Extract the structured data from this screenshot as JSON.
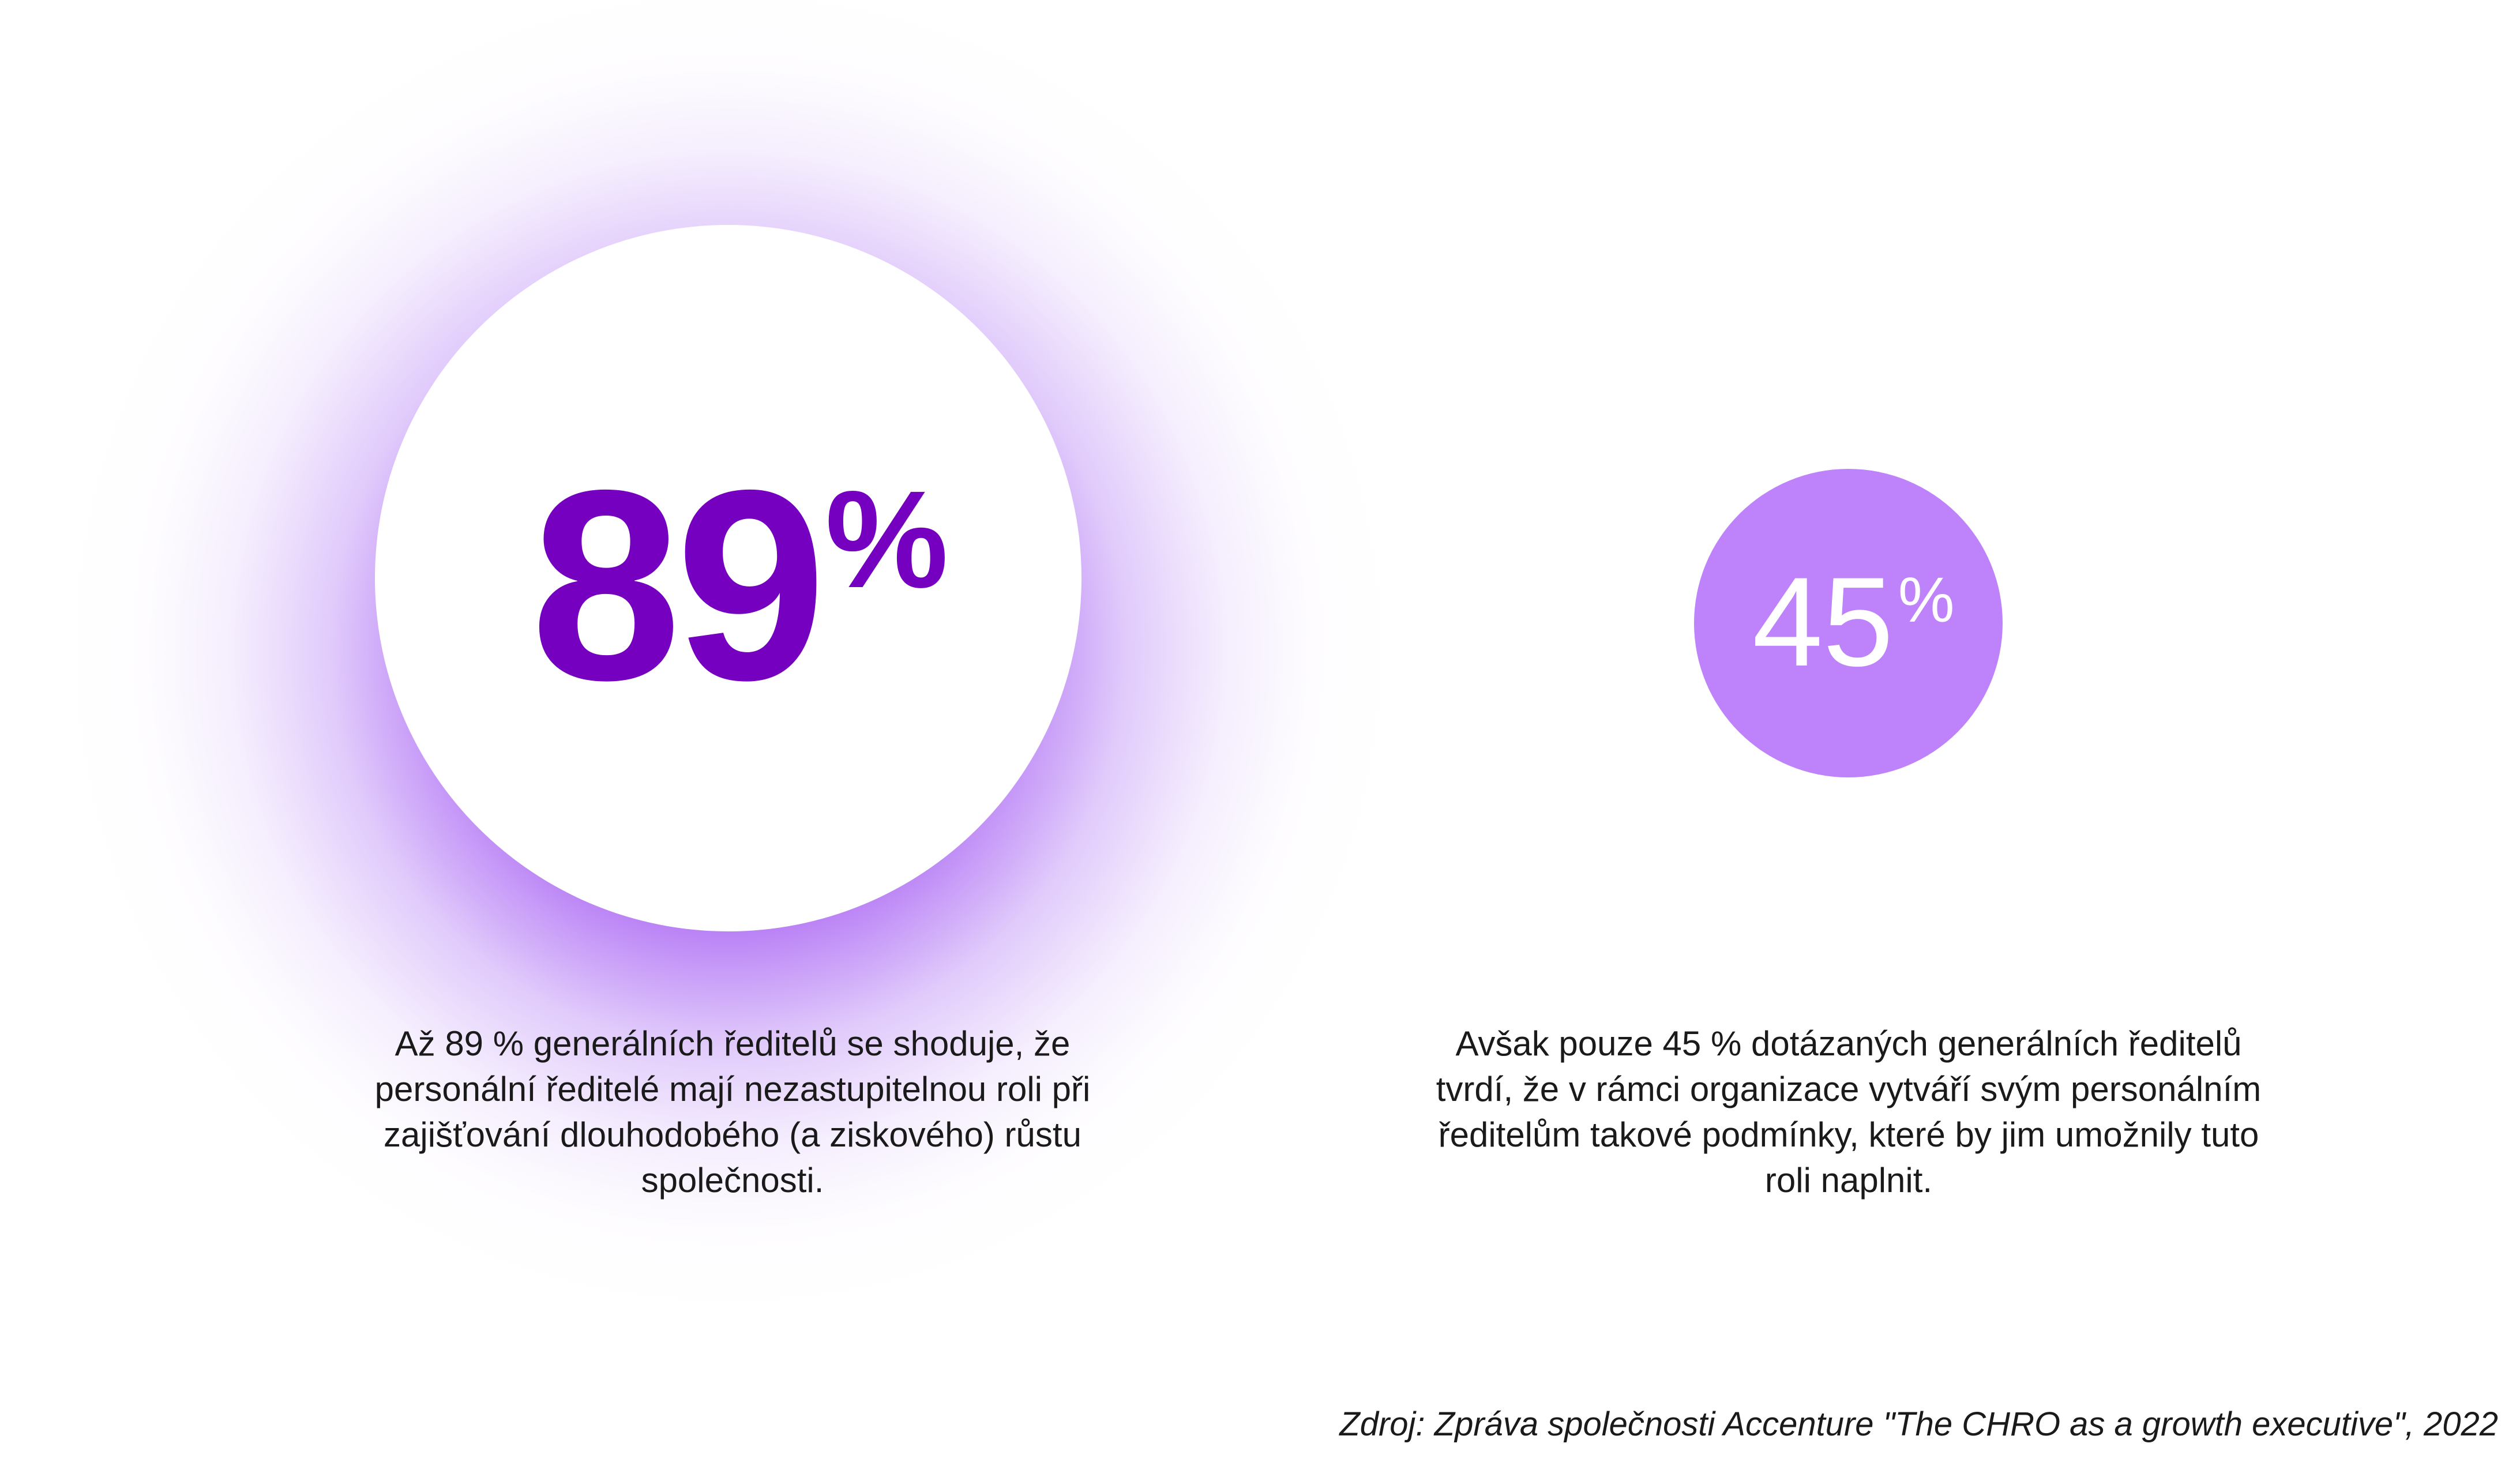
{
  "stat_left": {
    "value": "89",
    "unit": "%",
    "text": "Až 89 % generálních ředitelů se shoduje, že personální ředitelé mají nezastupitelnou roli při zajišťování dlouhodobého (a ziskového) růstu společnosti."
  },
  "stat_right": {
    "value": "45",
    "unit": "%",
    "text": "Avšak pouze 45 % dotázaných generálních ředitelů tvrdí, že v rámci organizace vytváří svým personálním ředitelům takové podmínky, které by jim umožnily tuto roli naplnit."
  },
  "source": "Zdroj: Zpráva společnosti Accenture \"The CHRO as a growth executive\", 2022",
  "colors": {
    "primary_purple": "#7500c0",
    "light_purple": "#be82fa",
    "glow_purple": "#a95ef3"
  }
}
